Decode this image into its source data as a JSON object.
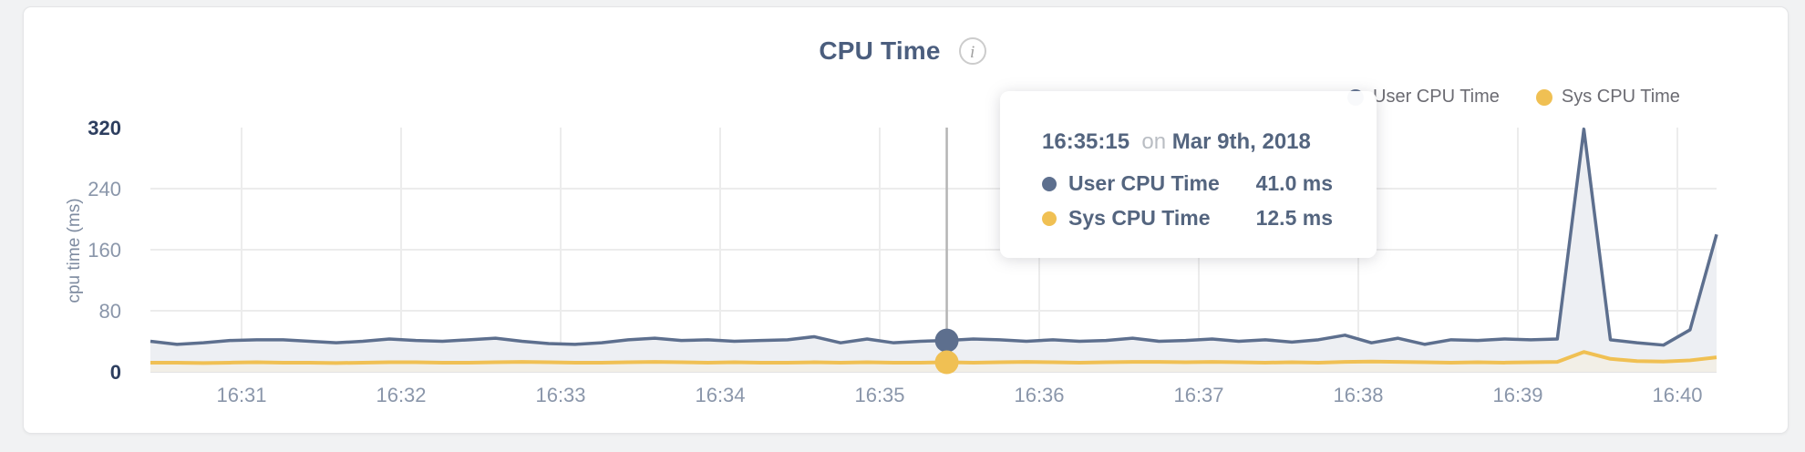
{
  "card": {
    "title": "CPU Time",
    "info_icon_glyph": "i"
  },
  "legend": {
    "position": "top-right",
    "items": [
      {
        "label": "User CPU Time",
        "color": "#5d6f8e"
      },
      {
        "label": "Sys CPU Time",
        "color": "#f0c053"
      }
    ]
  },
  "tooltip": {
    "time": "16:35:15",
    "connector": "on",
    "date": "Mar 9th, 2018",
    "rows": [
      {
        "label": "User CPU Time",
        "value": "41.0 ms",
        "color": "#5d6f8e"
      },
      {
        "label": "Sys CPU Time",
        "value": "12.5 ms",
        "color": "#f0c053"
      }
    ]
  },
  "chart_data": {
    "type": "line",
    "title": "CPU Time",
    "xlabel": "",
    "ylabel": "cpu time (ms)",
    "ylim": [
      0,
      320
    ],
    "yticks": [
      0,
      80,
      160,
      240,
      320
    ],
    "ytick_emphasized": [
      0,
      320
    ],
    "x_tick_labels": [
      "16:31",
      "16:32",
      "16:33",
      "16:34",
      "16:35",
      "16:36",
      "16:37",
      "16:38",
      "16:39",
      "16:40"
    ],
    "grid": true,
    "legend_position": "top-right",
    "sample_interval_seconds": 10,
    "hover_index": 30,
    "hover_time": "16:35:15",
    "series": [
      {
        "name": "User CPU Time",
        "color": "#5d6f8e",
        "fill": "#edeff3",
        "unit": "ms",
        "values": [
          40,
          36,
          38,
          41,
          42,
          42,
          40,
          38,
          40,
          43,
          41,
          40,
          42,
          44,
          40,
          37,
          36,
          38,
          42,
          44,
          41,
          42,
          40,
          41,
          42,
          46,
          38,
          43,
          38,
          40,
          41,
          43,
          42,
          40,
          42,
          40,
          41,
          44,
          40,
          41,
          43,
          40,
          42,
          39,
          42,
          48,
          38,
          44,
          36,
          42,
          41,
          43,
          42,
          43,
          318,
          42,
          38,
          35,
          55,
          180
        ]
      },
      {
        "name": "Sys CPU Time",
        "color": "#f0c053",
        "fill": "#f2efe7",
        "unit": "ms",
        "values": [
          12,
          12,
          11.5,
          12,
          12.5,
          12,
          12,
          11.5,
          12,
          12.5,
          12.5,
          12,
          12,
          12.5,
          13,
          12.5,
          12,
          12,
          12.5,
          13,
          12.5,
          12,
          12.5,
          12,
          12,
          12.5,
          12,
          12.5,
          12,
          12,
          12.5,
          12,
          12.5,
          13,
          12.5,
          12,
          12.5,
          13,
          13,
          12.5,
          13,
          12.5,
          12,
          12.5,
          12,
          13,
          13.5,
          13,
          12.5,
          12,
          12.5,
          12,
          12.5,
          13,
          26,
          17,
          14,
          13.5,
          15,
          19
        ]
      }
    ]
  },
  "colors": {
    "page_background": "#f1f2f3",
    "card_background": "#ffffff",
    "card_border": "#e4e5e7",
    "title": "#4b5e7e",
    "gridline": "#ececec",
    "axis_line": "#e3e3e3",
    "tick_label": "#8a96aa",
    "tick_label_emphasized": "#2d3e5f",
    "hover_line": "#b5b5b5",
    "legend_text": "#6b6b72",
    "tooltip_text": "#54657f",
    "tooltip_muted": "#b9bdc3"
  }
}
